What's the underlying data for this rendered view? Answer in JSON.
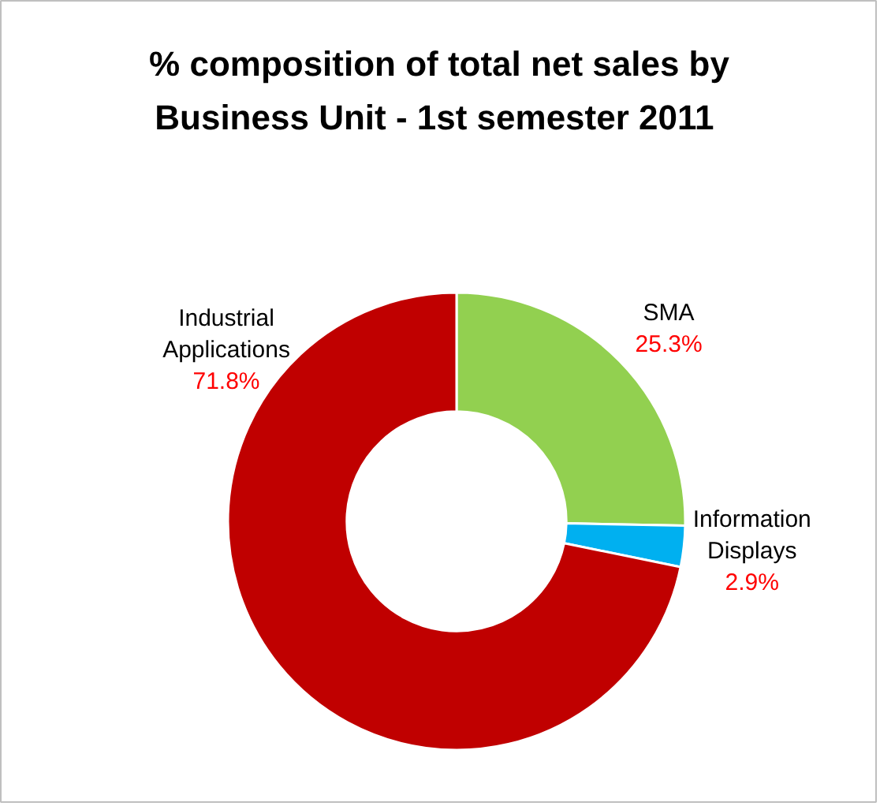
{
  "chart_data": {
    "type": "donut",
    "title": "% composition of total net sales by\nBusiness Unit  - 1st semester 2011",
    "categories": [
      "SMA",
      "Information\nDisplays",
      "Industrial\nApplications"
    ],
    "values": [
      25.3,
      2.9,
      71.8
    ],
    "colors": [
      "#92d050",
      "#00b0f0",
      "#c00000"
    ],
    "value_labels": [
      "25.3%",
      "2.9%",
      "71.8%"
    ]
  }
}
